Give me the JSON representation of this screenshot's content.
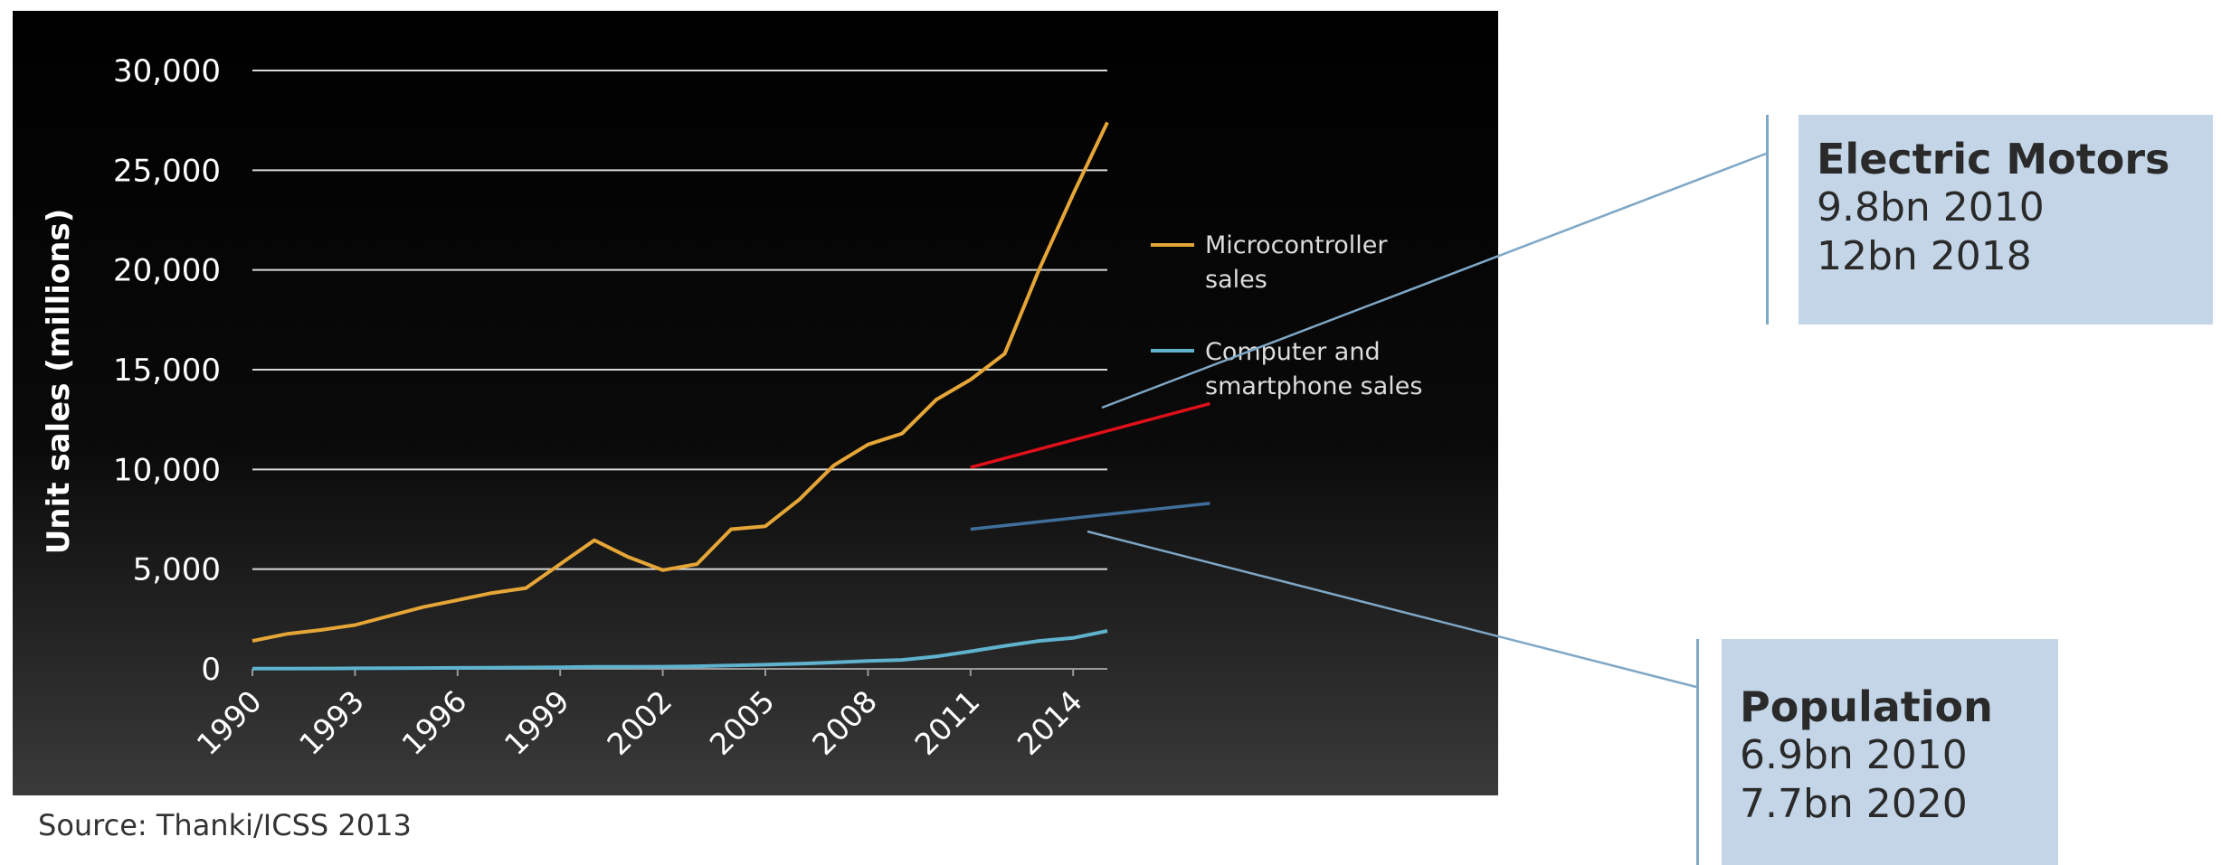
{
  "chart_data": {
    "type": "line",
    "ylabel": "Unit sales (millions)",
    "xlabel": "",
    "ylim": [
      0,
      30000
    ],
    "yticks": [
      0,
      5000,
      10000,
      15000,
      20000,
      25000,
      30000
    ],
    "ytick_labels": [
      "0",
      "5,000",
      "10,000",
      "15,000",
      "20,000",
      "25,000",
      "30,000"
    ],
    "xlim": [
      1990,
      2015
    ],
    "xticks": [
      1990,
      1993,
      1996,
      1999,
      2002,
      2005,
      2008,
      2011,
      2014
    ],
    "xtick_labels": [
      "1990",
      "1993",
      "1996",
      "1999",
      "2002",
      "2005",
      "2008",
      "2011",
      "2014"
    ],
    "grid": true,
    "legend_position": "right",
    "series": [
      {
        "name": "Microcontroller sales",
        "color": "#e5a637",
        "x": [
          1990,
          1991,
          1992,
          1993,
          1994,
          1995,
          1996,
          1997,
          1998,
          1999,
          2000,
          2001,
          2002,
          2003,
          2004,
          2005,
          2006,
          2007,
          2008,
          2009,
          2010,
          2011,
          2012,
          2013,
          2014,
          2015
        ],
        "y": [
          1400,
          1750,
          1950,
          2200,
          2650,
          3100,
          3450,
          3800,
          4050,
          5250,
          6450,
          5600,
          4950,
          5250,
          7000,
          7150,
          8500,
          10200,
          11250,
          11800,
          13500,
          14500,
          15800,
          20000,
          23800,
          27400
        ]
      },
      {
        "name": "Computer and smartphone sales",
        "color": "#5fb3ce",
        "x": [
          1990,
          1991,
          1992,
          1993,
          1994,
          1995,
          1996,
          1997,
          1998,
          1999,
          2000,
          2001,
          2002,
          2003,
          2004,
          2005,
          2006,
          2007,
          2008,
          2009,
          2010,
          2011,
          2012,
          2013,
          2014,
          2015
        ],
        "y": [
          10,
          15,
          20,
          25,
          30,
          40,
          50,
          60,
          70,
          80,
          100,
          100,
          110,
          130,
          170,
          210,
          260,
          320,
          400,
          450,
          620,
          880,
          1150,
          1400,
          1550,
          1900
        ]
      }
    ],
    "trend_lines": [
      {
        "color": "#e0101a",
        "x": [
          2011,
          2018
        ],
        "y": [
          10100,
          13300
        ]
      },
      {
        "color": "#3f6f9a",
        "x": [
          2011,
          2018
        ],
        "y": [
          7000,
          8300
        ]
      }
    ]
  },
  "callouts": {
    "electric_motors": {
      "title": "Electric Motors",
      "lines": [
        "9.8bn 2010",
        "12bn 2018"
      ]
    },
    "population": {
      "title": "Population",
      "lines": [
        "6.9bn 2010",
        "7.7bn 2020"
      ]
    }
  },
  "source": "Source: Thanki/ICSS 2013",
  "colors": {
    "callout_bg": "#c3d5e6",
    "connector": "#7fa7c6"
  }
}
